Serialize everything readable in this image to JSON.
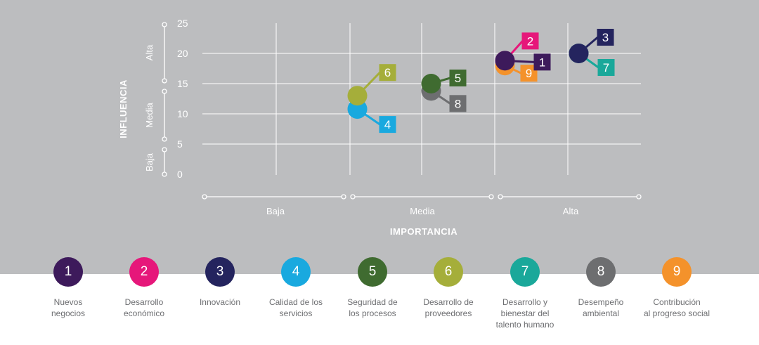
{
  "chart_data": {
    "type": "scatter",
    "xlabel": "IMPORTANCIA",
    "ylabel": "INFLUENCIA",
    "ylim": [
      0,
      25
    ],
    "y_ticks": [
      "0",
      "5",
      "10",
      "15",
      "20",
      "25"
    ],
    "x_bands": [
      "Baja",
      "Media",
      "Alta"
    ],
    "y_bands": [
      "Baja",
      "Media",
      "Alta"
    ],
    "grid": true,
    "points": [
      {
        "id": "1",
        "x": 2.05,
        "y": 18.8,
        "color": "#3d1a5b"
      },
      {
        "id": "2",
        "x": 2.05,
        "y": 18.8,
        "color": "#e6177a"
      },
      {
        "id": "3",
        "x": 2.55,
        "y": 20,
        "color": "#24245e"
      },
      {
        "id": "4",
        "x": 1.05,
        "y": 10.8,
        "color": "#19a9df"
      },
      {
        "id": "5",
        "x": 1.55,
        "y": 15,
        "color": "#3f6b30"
      },
      {
        "id": "6",
        "x": 1.05,
        "y": 13,
        "color": "#a5ae3a"
      },
      {
        "id": "7",
        "x": 2.55,
        "y": 20,
        "color": "#1aa89a"
      },
      {
        "id": "8",
        "x": 1.55,
        "y": 13.8,
        "color": "#6d6e70"
      },
      {
        "id": "9",
        "x": 2.05,
        "y": 18,
        "color": "#f4922b"
      }
    ]
  },
  "legend": [
    {
      "num": "1",
      "label": "Nuevos\nnegocios",
      "color": "#3d1a5b"
    },
    {
      "num": "2",
      "label": "Desarrollo\neconómico",
      "color": "#e6177a"
    },
    {
      "num": "3",
      "label": "Innovación",
      "color": "#24245e"
    },
    {
      "num": "4",
      "label": "Calidad de los\nservicios",
      "color": "#19a9df"
    },
    {
      "num": "5",
      "label": "Seguridad de\nlos procesos",
      "color": "#3f6b30"
    },
    {
      "num": "6",
      "label": "Desarrollo de\nproveedores",
      "color": "#a5ae3a"
    },
    {
      "num": "7",
      "label": "Desarrollo y\nbienestar del\ntalento humano",
      "color": "#1aa89a"
    },
    {
      "num": "8",
      "label": "Desempeño\nambiental",
      "color": "#6d6e70"
    },
    {
      "num": "9",
      "label": "Contribución\nal progreso social",
      "color": "#f4922b"
    }
  ]
}
